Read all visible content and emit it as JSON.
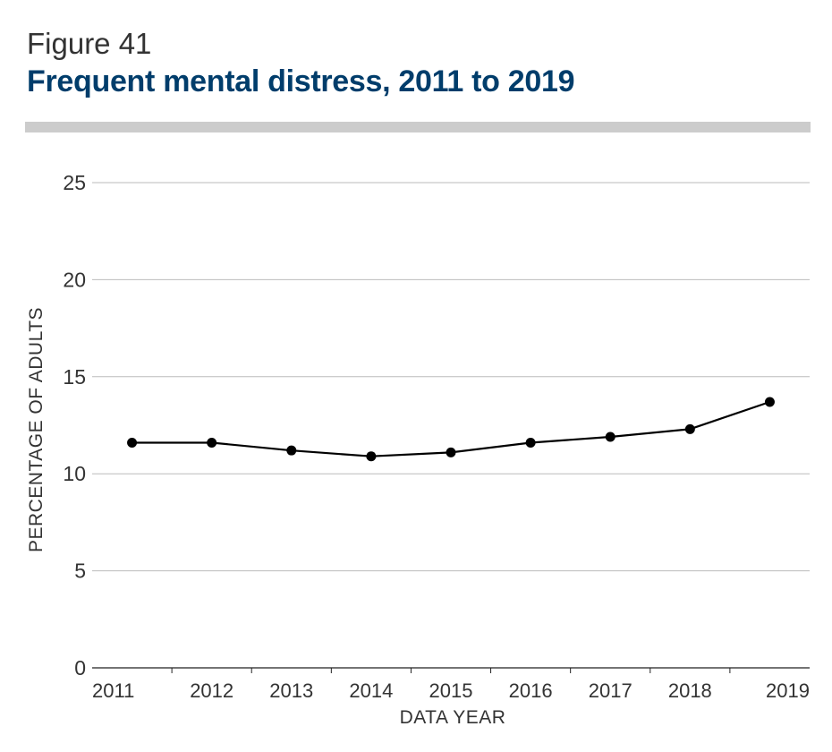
{
  "figure": {
    "label": "Figure 41",
    "title": "Frequent mental distress, 2011 to 2019"
  },
  "colors": {
    "title": "#003d6b",
    "divider": "#cccccc",
    "gridline": "#bbbbbb",
    "line": "#000000",
    "text": "#333333"
  },
  "chart_data": {
    "type": "line",
    "title": "Frequent mental distress, 2011 to 2019",
    "xlabel": "DATA YEAR",
    "ylabel": "PERCENTAGE OF ADULTS",
    "categories": [
      "2011",
      "2012",
      "2013",
      "2014",
      "2015",
      "2016",
      "2017",
      "2018",
      "2019"
    ],
    "values": [
      11.6,
      11.6,
      11.2,
      10.9,
      11.1,
      11.6,
      11.9,
      12.3,
      13.7
    ],
    "yticks": [
      0,
      5,
      10,
      15,
      20,
      25
    ],
    "ylim": [
      0,
      25
    ],
    "grid": true,
    "legend": "none"
  }
}
